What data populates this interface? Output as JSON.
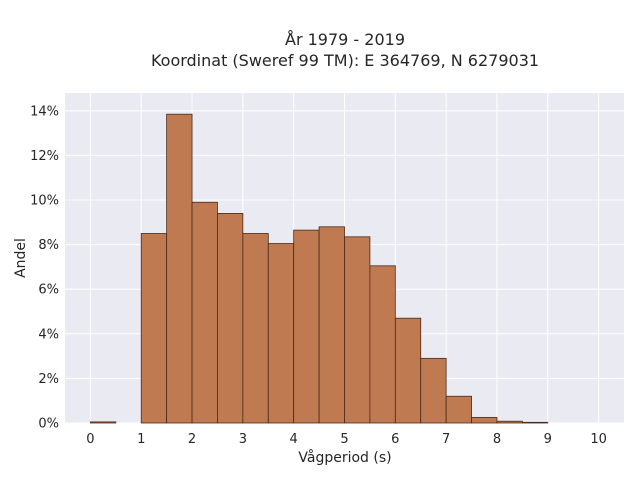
{
  "chart_data": {
    "type": "bar",
    "title": "År 1979 - 2019",
    "subtitle": "Koordinat (Sweref 99 TM): E 364769, N 6279031",
    "xlabel": "Vågperiod (s)",
    "ylabel": "Andel",
    "bin_width": 0.5,
    "bin_starts": [
      0,
      0.5,
      1,
      1.5,
      2,
      2.5,
      3,
      3.5,
      4,
      4.5,
      5,
      5.5,
      6,
      6.5,
      7,
      7.5,
      8,
      8.5,
      9,
      9.5
    ],
    "values": [
      0.05,
      0.0,
      8.5,
      13.85,
      9.9,
      9.4,
      8.5,
      8.05,
      8.65,
      8.8,
      8.35,
      7.05,
      4.7,
      2.9,
      1.2,
      0.25,
      0.08,
      0.03,
      0.0,
      0.0
    ],
    "xlim": [
      -0.5,
      10.5
    ],
    "ylim": [
      0,
      14.8
    ],
    "x_ticks": [
      0,
      1,
      2,
      3,
      4,
      5,
      6,
      7,
      8,
      9,
      10
    ],
    "x_tick_labels": [
      "0",
      "1",
      "2",
      "3",
      "4",
      "5",
      "6",
      "7",
      "8",
      "9",
      "10"
    ],
    "y_ticks": [
      0,
      2,
      4,
      6,
      8,
      10,
      12,
      14
    ],
    "y_tick_labels": [
      "0%",
      "2%",
      "4%",
      "6%",
      "8%",
      "10%",
      "12%",
      "14%"
    ],
    "grid": true,
    "colors": {
      "bar": "#c07a52",
      "bar_edge": "#4a2a18",
      "plot_bg": "#eaeaf2",
      "grid": "#ffffff"
    }
  }
}
